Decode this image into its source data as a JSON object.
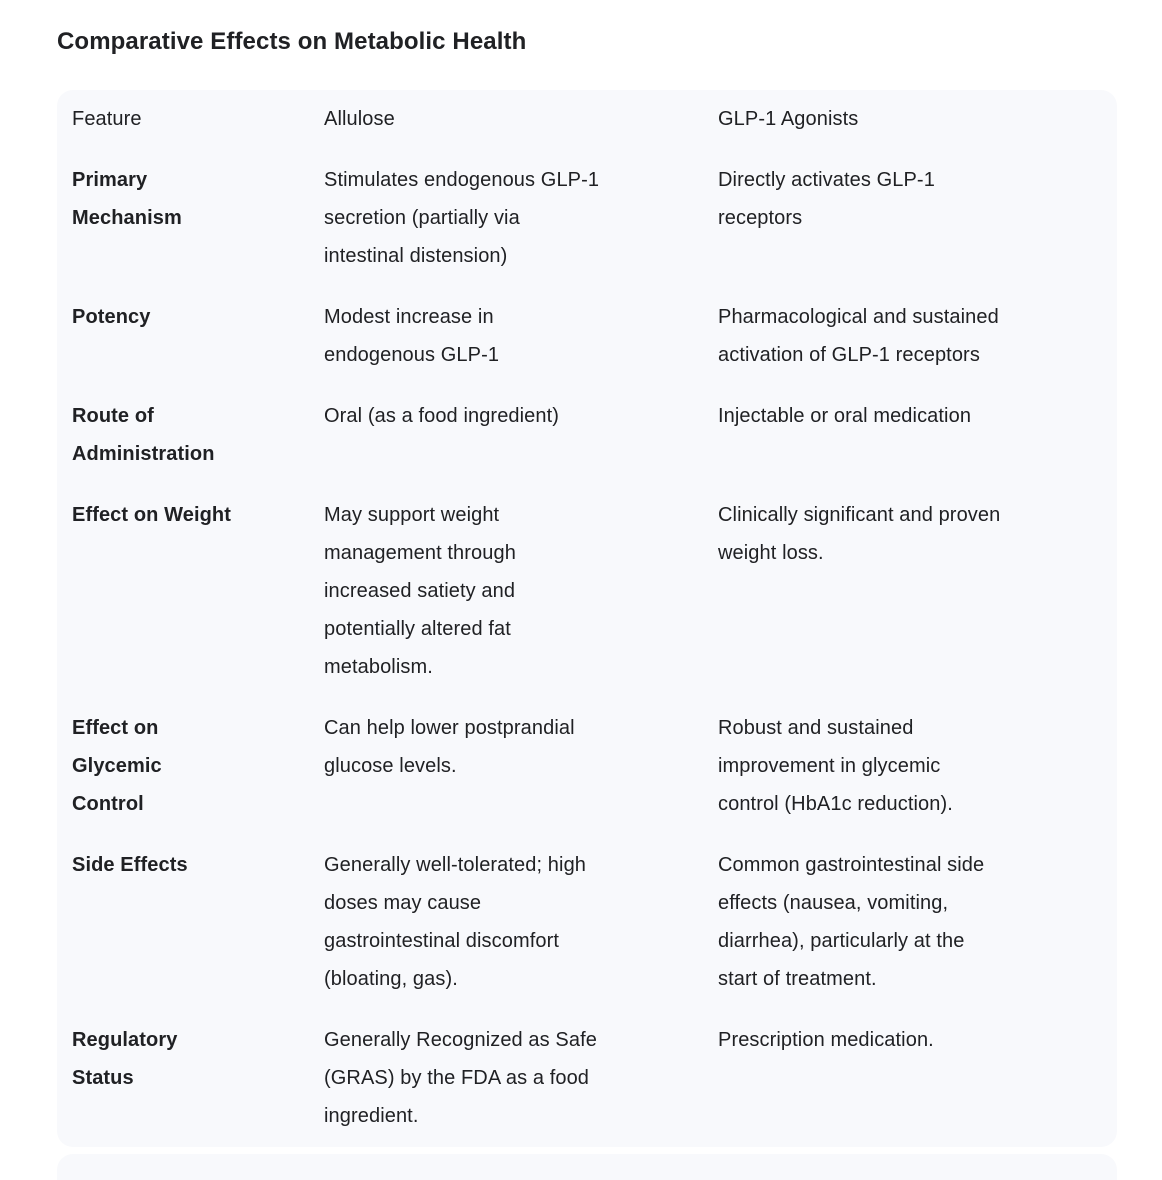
{
  "page_title": "Comparative Effects on Metabolic Health",
  "colors": {
    "card_background": "#f8f9fc",
    "page_background": "#ffffff",
    "text": "#202124"
  },
  "table": {
    "headers": [
      "Feature",
      "Allulose",
      "GLP-1 Agonists"
    ],
    "rows": [
      {
        "feature": "Primary\nMechanism",
        "allulose": "Stimulates endogenous GLP-1\nsecretion (partially via\nintestinal distension)",
        "glp1": "Directly activates GLP-1\nreceptors"
      },
      {
        "feature": "Potency",
        "allulose": "Modest increase in\nendogenous GLP-1",
        "glp1": "Pharmacological and sustained\nactivation of GLP-1 receptors"
      },
      {
        "feature": "Route of\nAdministration",
        "allulose": "Oral (as a food ingredient)",
        "glp1": "Injectable or oral medication"
      },
      {
        "feature": "Effect on Weight",
        "allulose": "May support weight\nmanagement through\nincreased satiety and\npotentially altered fat\nmetabolism.",
        "glp1": "Clinically significant and proven\nweight loss."
      },
      {
        "feature": "Effect on\nGlycemic\nControl",
        "allulose": "Can help lower postprandial\nglucose levels.",
        "glp1": "Robust and sustained\nimprovement in glycemic\ncontrol (HbA1c reduction)."
      },
      {
        "feature": "Side Effects",
        "allulose": "Generally well-tolerated; high\ndoses may cause\ngastrointestinal discomfort\n(bloating, gas).",
        "glp1": "Common gastrointestinal side\neffects (nausea, vomiting,\ndiarrhea), particularly at the\nstart of treatment."
      },
      {
        "feature": "Regulatory\nStatus",
        "allulose": "Generally Recognized as Safe\n(GRAS) by the FDA as a food\ningredient.",
        "glp1": "Prescription medication."
      }
    ]
  }
}
